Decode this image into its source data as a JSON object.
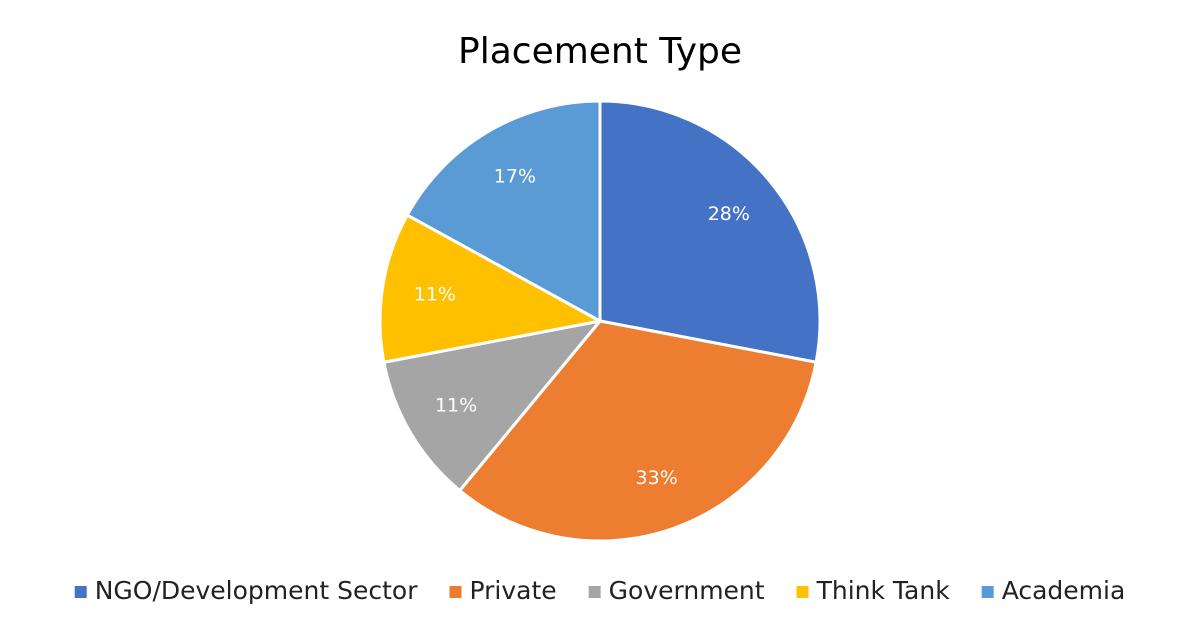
{
  "chart_data": {
    "type": "pie",
    "title": "Placement Type",
    "categories": [
      "NGO/Development Sector",
      "Private",
      "Government",
      "Think Tank",
      "Academia"
    ],
    "values": [
      28,
      33,
      11,
      11,
      17
    ],
    "value_labels": [
      "28%",
      "33%",
      "11%",
      "11%",
      "17%"
    ],
    "colors": [
      "#4472c4",
      "#ed7d31",
      "#a5a5a5",
      "#ffc000",
      "#5b9bd5"
    ],
    "legend": "bottom"
  }
}
